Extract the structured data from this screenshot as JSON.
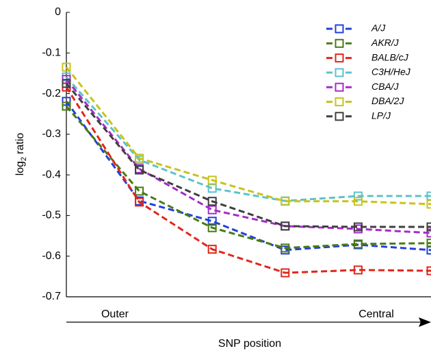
{
  "chart_data": {
    "type": "line",
    "ylabel": {
      "base": "log",
      "sub": "2",
      "rest": "ratio"
    },
    "xlabel": "SNP position",
    "annotations": [
      "Outer",
      "Central"
    ],
    "x": [
      1,
      2,
      3,
      4,
      5,
      6
    ],
    "xlim": [
      1,
      6
    ],
    "ylim": [
      -0.7,
      0
    ],
    "yticks": [
      0,
      -0.1,
      -0.2,
      -0.3,
      -0.4,
      -0.5,
      -0.6,
      -0.7
    ],
    "legend": "upper right",
    "series": [
      {
        "name": "A/J",
        "color": "#1f3fe0",
        "values": [
          -0.219,
          -0.464,
          -0.514,
          -0.585,
          -0.572,
          -0.585
        ]
      },
      {
        "name": "AKR/J",
        "color": "#4a7a12",
        "values": [
          -0.231,
          -0.44,
          -0.53,
          -0.58,
          -0.57,
          -0.568
        ]
      },
      {
        "name": "BALB/cJ",
        "color": "#e0261a",
        "values": [
          -0.184,
          -0.467,
          -0.583,
          -0.641,
          -0.634,
          -0.636
        ]
      },
      {
        "name": "C3H/HeJ",
        "color": "#5bc3c8",
        "values": [
          -0.159,
          -0.363,
          -0.433,
          -0.464,
          -0.452,
          -0.452
        ]
      },
      {
        "name": "CBA/J",
        "color": "#a62bc9",
        "values": [
          -0.165,
          -0.385,
          -0.486,
          -0.526,
          -0.533,
          -0.543
        ]
      },
      {
        "name": "DBA/2J",
        "color": "#c9c21a",
        "values": [
          -0.135,
          -0.359,
          -0.413,
          -0.465,
          -0.465,
          -0.472
        ]
      },
      {
        "name": "LP/J",
        "color": "#3f3f3f",
        "values": [
          -0.175,
          -0.388,
          -0.465,
          -0.526,
          -0.528,
          -0.528
        ]
      }
    ]
  }
}
